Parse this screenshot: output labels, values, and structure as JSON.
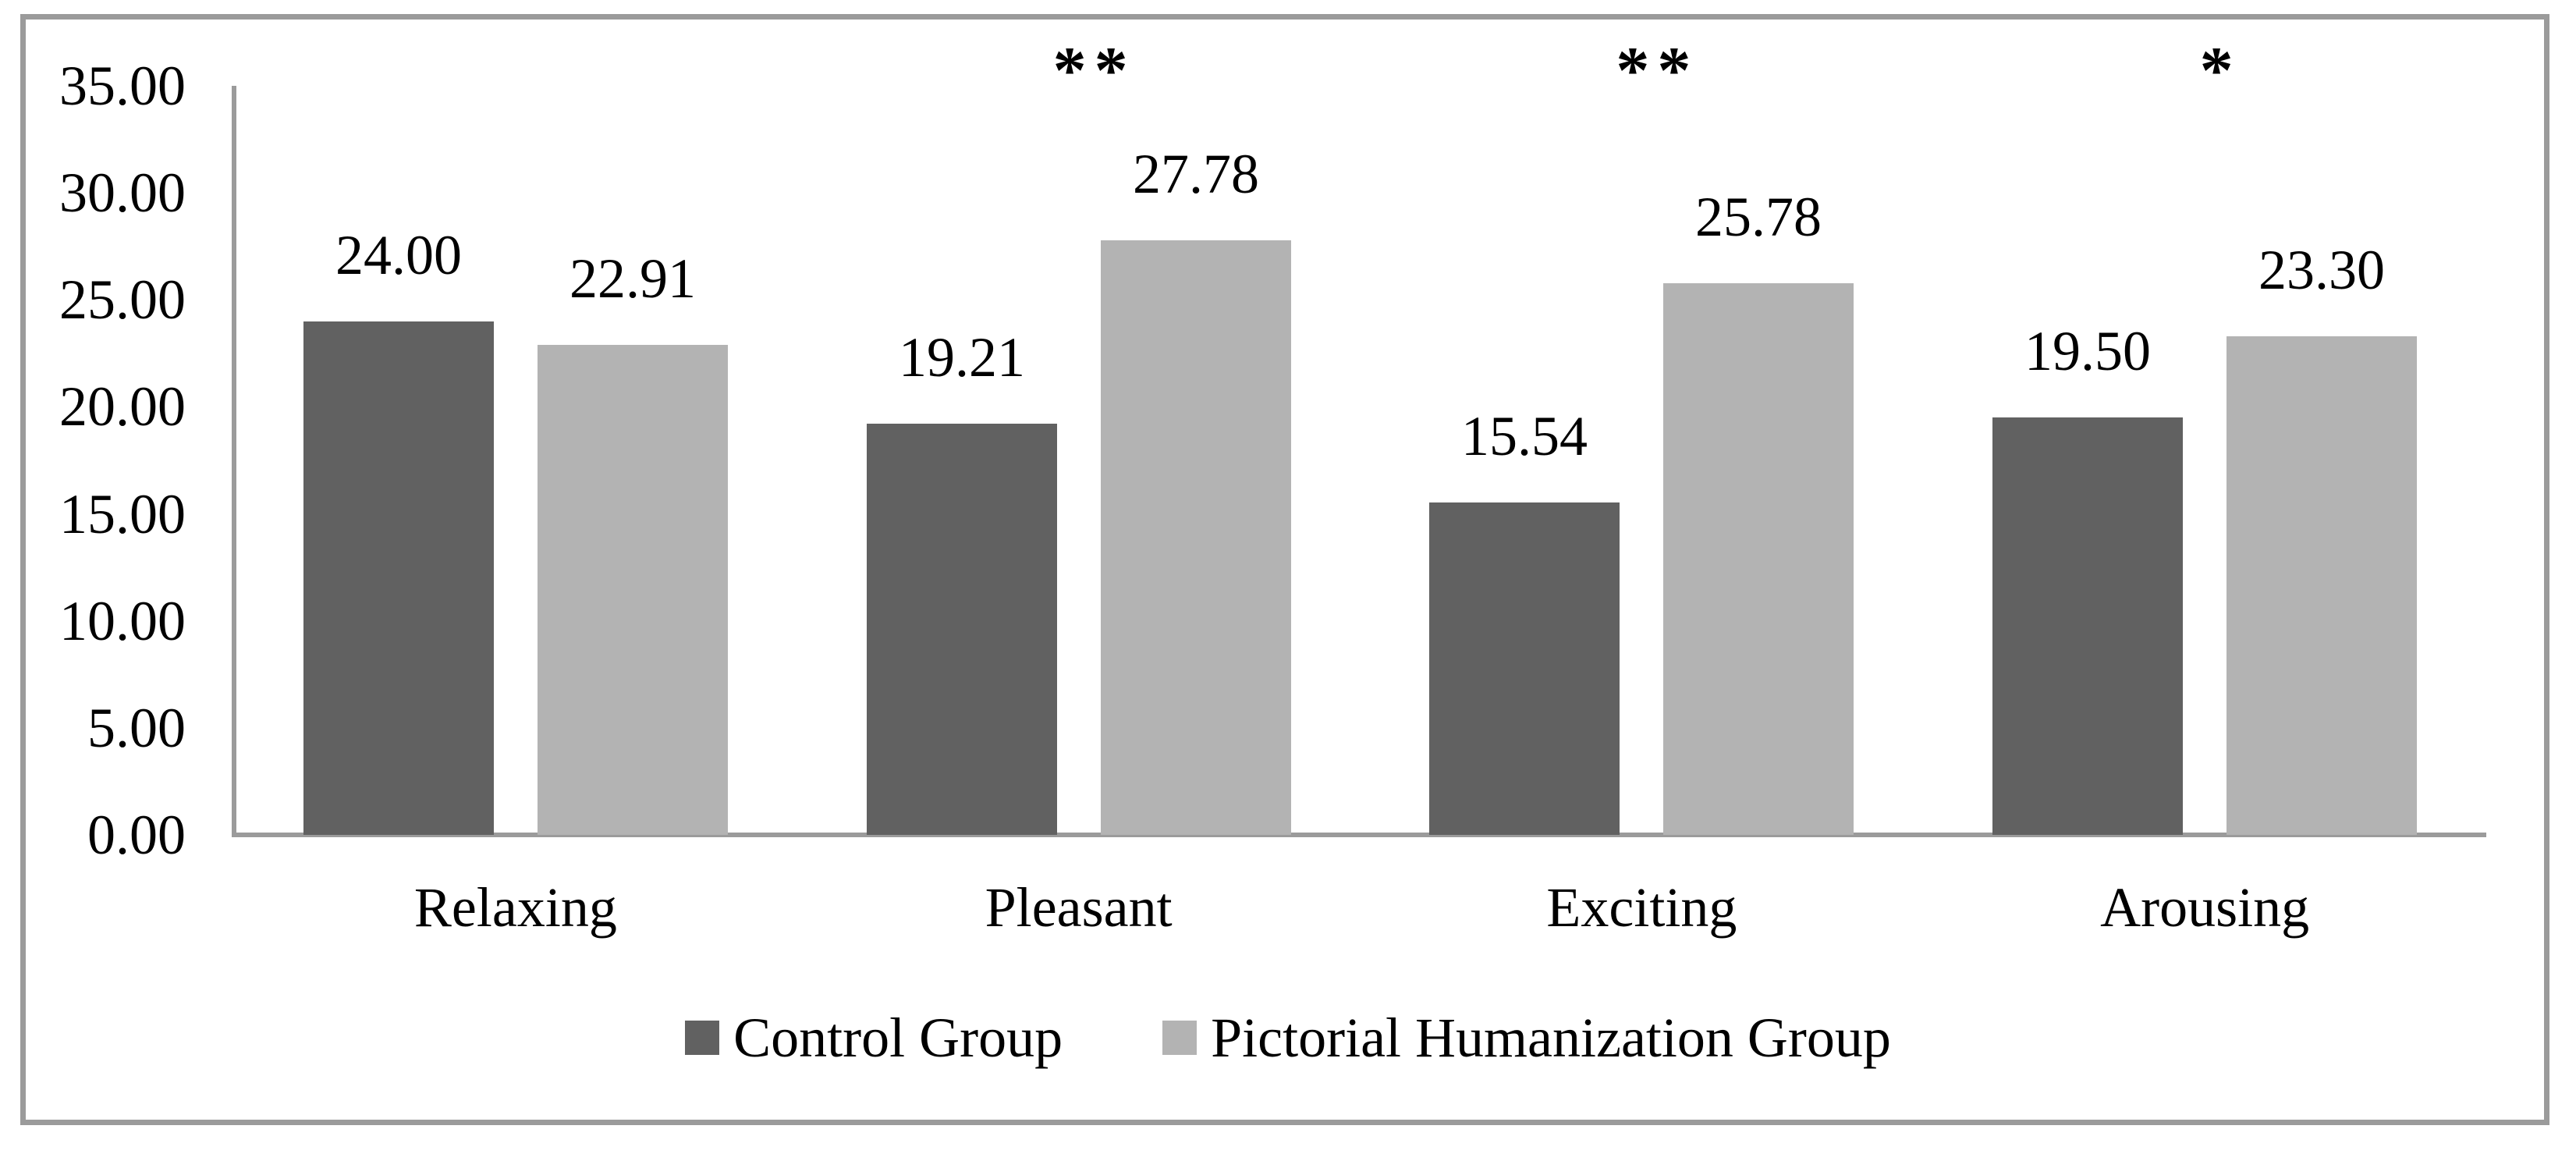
{
  "chart_data": {
    "type": "bar",
    "title": "",
    "xlabel": "",
    "ylabel": "",
    "categories": [
      "Relaxing",
      "Pleasant",
      "Exciting",
      "Arousing"
    ],
    "series": [
      {
        "name": "Control Group",
        "color": "#616161",
        "values": [
          24.0,
          19.21,
          15.54,
          19.5
        ],
        "value_labels": [
          "24.00",
          "19.21",
          "15.54",
          "19.50"
        ]
      },
      {
        "name": "Pictorial Humanization Group",
        "color": "#b3b3b3",
        "values": [
          22.91,
          27.78,
          25.78,
          23.3
        ],
        "value_labels": [
          "22.91",
          "27.78",
          "25.78",
          "23.30"
        ]
      }
    ],
    "significance_markers": [
      "",
      "**",
      "**",
      "*"
    ],
    "ylim": [
      0,
      35
    ],
    "y_ticks": [
      "0.00",
      "5.00",
      "10.00",
      "15.00",
      "20.00",
      "25.00",
      "30.00",
      "35.00"
    ],
    "y_tick_values": [
      0,
      5,
      10,
      15,
      20,
      25,
      30,
      35
    ],
    "grid": false,
    "legend_position": "bottom",
    "bar_labels_shown": true,
    "axis_color": "#9b9b9b",
    "text_color": "#000000"
  }
}
